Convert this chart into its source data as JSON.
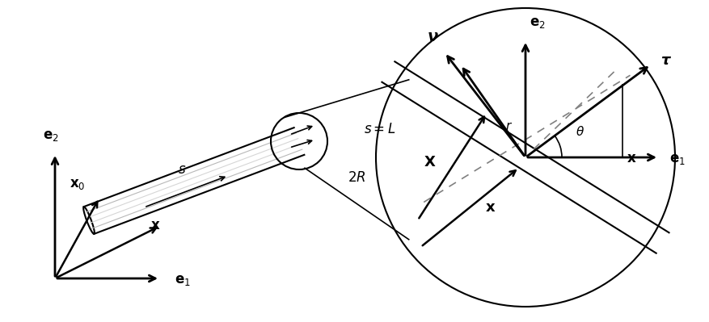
{
  "bg_color": "#ffffff",
  "fig_width": 8.78,
  "fig_height": 3.99,
  "lc": "#000000",
  "gc": "#999999",
  "fs": 12
}
